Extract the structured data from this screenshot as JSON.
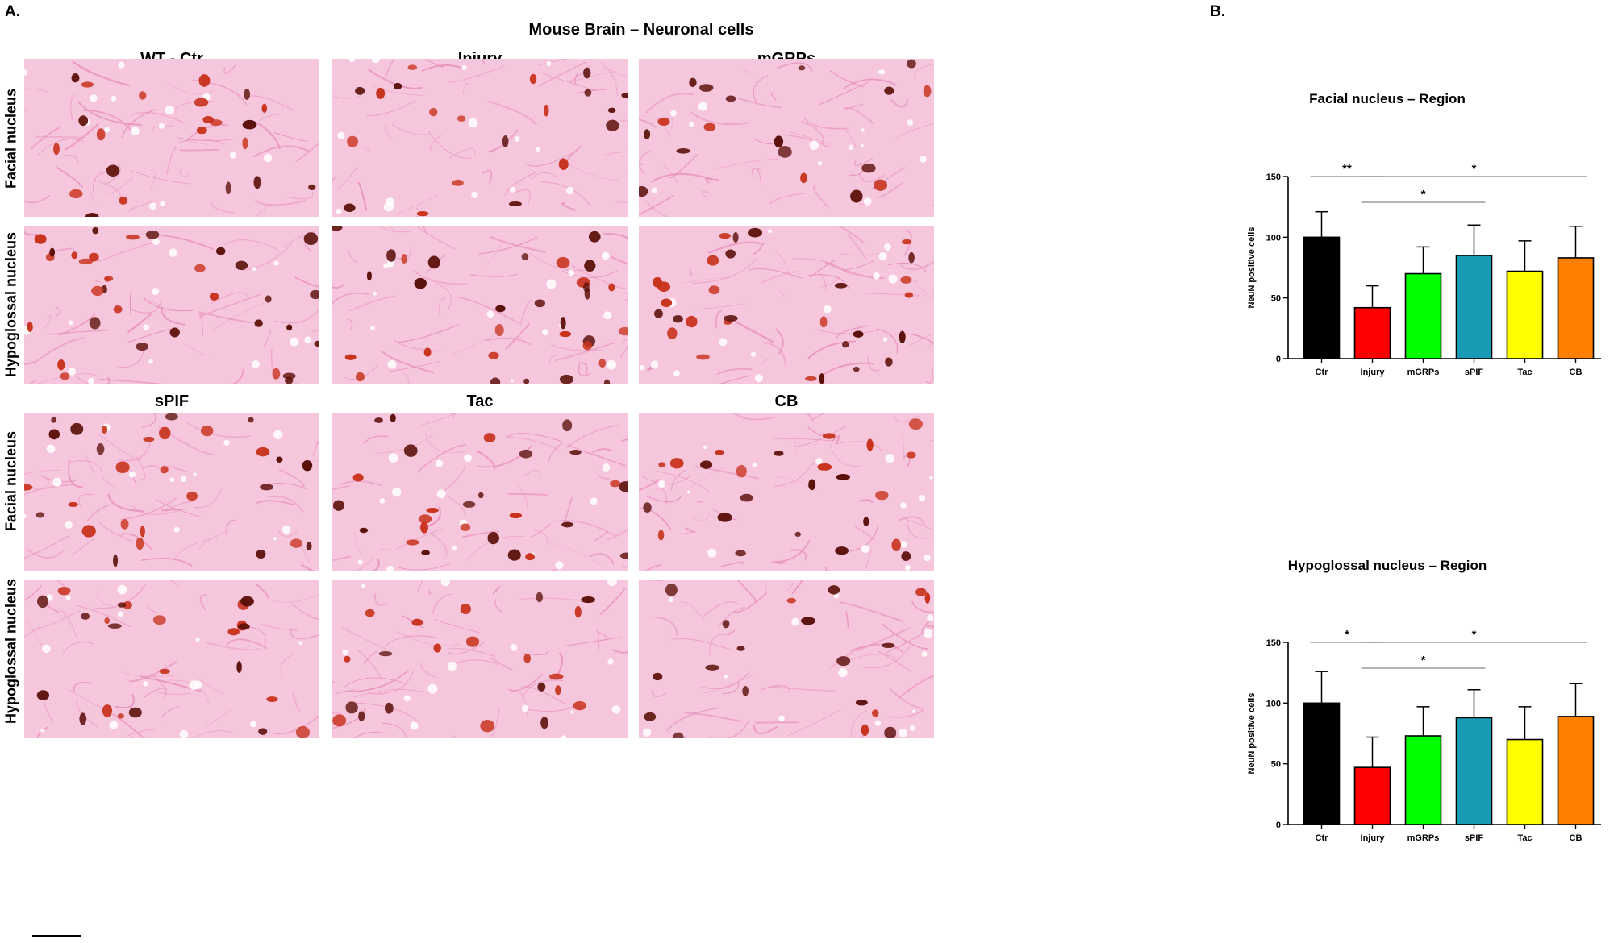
{
  "panel_a": {
    "letter": "A.",
    "title": "Mouse Brain – Neuronal cells",
    "row_labels": {
      "facial": "Facial nucleus",
      "hypoglossal": "Hypoglossal nucleus"
    },
    "groups_top": [
      "WT - Ctr",
      "Injury",
      "mGRPs"
    ],
    "groups_bottom": [
      "sPIF",
      "Tac",
      "CB"
    ]
  },
  "panel_b": {
    "letter": "B."
  },
  "colors": {
    "stain_bg": "#f6c6dd",
    "stain_fiber": "#e58ab8",
    "neuron_red": "#c8321c",
    "neuron_dark": "#5a0f08"
  },
  "chart_data": [
    {
      "type": "bar",
      "title": "Facial nucleus  – Region",
      "ylabel": "NeuN positive cells",
      "xlabel": "",
      "categories": [
        "Ctr",
        "Injury",
        "mGRPs",
        "sPIF",
        "Tac",
        "CB"
      ],
      "values": [
        100,
        42,
        70,
        85,
        72,
        83
      ],
      "errors": [
        21,
        18,
        22,
        25,
        25,
        26
      ],
      "colors": [
        "#000000",
        "#ff0000",
        "#00ff00",
        "#1a9bb5",
        "#ffff00",
        "#ff8000"
      ],
      "ylim": [
        0,
        150
      ],
      "yticks": [
        0,
        50,
        100,
        150
      ],
      "grid": false,
      "significance": [
        {
          "from": "Ctr",
          "to": "Injury",
          "label": "**"
        },
        {
          "from": "Injury",
          "to": "sPIF",
          "label": "*"
        },
        {
          "from": "Injury",
          "to": "CB",
          "label": "*"
        }
      ]
    },
    {
      "type": "bar",
      "title": "Hypoglossal nucleus  – Region",
      "ylabel": "NeuN positive cells",
      "xlabel": "",
      "categories": [
        "Ctr",
        "Injury",
        "mGRPs",
        "sPIF",
        "Tac",
        "CB"
      ],
      "values": [
        100,
        47,
        73,
        88,
        70,
        89
      ],
      "errors": [
        26,
        25,
        24,
        23,
        27,
        27
      ],
      "colors": [
        "#000000",
        "#ff0000",
        "#00ff00",
        "#1a9bb5",
        "#ffff00",
        "#ff8000"
      ],
      "ylim": [
        0,
        150
      ],
      "yticks": [
        0,
        50,
        100,
        150
      ],
      "grid": false,
      "significance": [
        {
          "from": "Ctr",
          "to": "Injury",
          "label": "*"
        },
        {
          "from": "Injury",
          "to": "sPIF",
          "label": "*"
        },
        {
          "from": "Injury",
          "to": "CB",
          "label": "*"
        }
      ]
    }
  ]
}
